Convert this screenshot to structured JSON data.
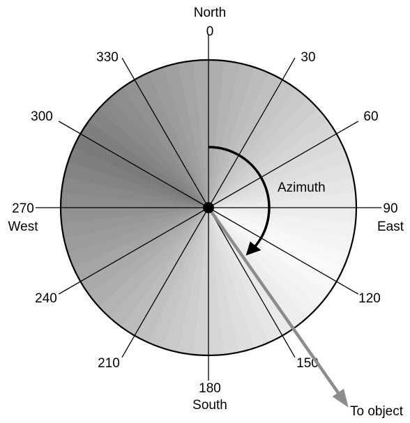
{
  "compass": {
    "north": "North",
    "south": "South",
    "east": "East",
    "west": "West",
    "degree_labels": [
      "0",
      "30",
      "60",
      "90",
      "120",
      "150",
      "180",
      "210",
      "240",
      "270",
      "300",
      "330"
    ]
  },
  "azimuth_label": "Azimuth",
  "object_label": "To object",
  "object_direction_degrees": 145,
  "colors": {
    "dial_dark": "#7a7a7a",
    "dial_light": "#fafafa",
    "pointer_arrow": "#8c8c8c",
    "lines": "#000000"
  }
}
